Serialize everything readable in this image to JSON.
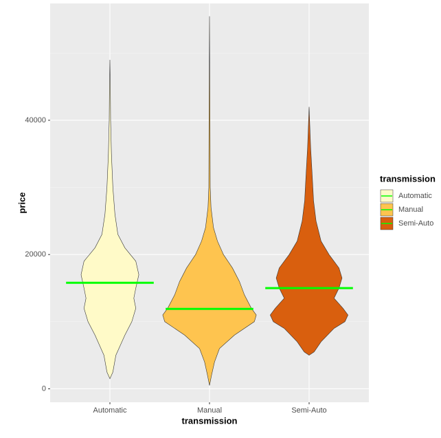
{
  "chart_data": {
    "type": "violin",
    "x_label": "transmission",
    "y_label": "price",
    "legend_title": "transmission",
    "categories": [
      "Automatic",
      "Manual",
      "Semi-Auto"
    ],
    "series": [
      {
        "name": "Automatic",
        "color": "#fffac8",
        "median": 15800,
        "prices": [
          1500,
          2500,
          5000,
          8000,
          10000,
          12000,
          13500,
          15000,
          17000,
          19000,
          21000,
          23000,
          26000,
          30000,
          35000,
          40000,
          44000,
          49000
        ],
        "widths": [
          0,
          0.03,
          0.06,
          0.15,
          0.22,
          0.26,
          0.24,
          0.26,
          0.29,
          0.26,
          0.15,
          0.08,
          0.05,
          0.03,
          0.015,
          0.007,
          0.005,
          0
        ]
      },
      {
        "name": "Manual",
        "color": "#fec44f",
        "median": 11900,
        "prices": [
          500,
          2000,
          4000,
          6000,
          8000,
          10000,
          11000,
          12000,
          14000,
          16000,
          18000,
          20000,
          22000,
          24000,
          27000,
          30000,
          40000,
          55500
        ],
        "widths": [
          0,
          0.02,
          0.05,
          0.1,
          0.25,
          0.45,
          0.47,
          0.42,
          0.35,
          0.3,
          0.23,
          0.14,
          0.08,
          0.04,
          0.015,
          0.007,
          0.005,
          0
        ]
      },
      {
        "name": "Semi-Auto",
        "color": "#d95f0e",
        "median": 15000,
        "prices": [
          5000,
          5500,
          7000,
          9000,
          10000,
          11000,
          12000,
          13500,
          15000,
          16500,
          18000,
          20000,
          22000,
          25000,
          28000,
          32000,
          36000,
          42000
        ],
        "widths": [
          0,
          0.05,
          0.12,
          0.25,
          0.36,
          0.39,
          0.34,
          0.25,
          0.3,
          0.33,
          0.3,
          0.2,
          0.12,
          0.07,
          0.045,
          0.03,
          0.015,
          0
        ]
      }
    ],
    "median_color": "#00ff00",
    "ylim": [
      -2000,
      57400
    ],
    "yticks": [
      0,
      20000,
      40000
    ],
    "yminorticks": [
      10000,
      30000,
      50000
    ],
    "grid": true
  }
}
